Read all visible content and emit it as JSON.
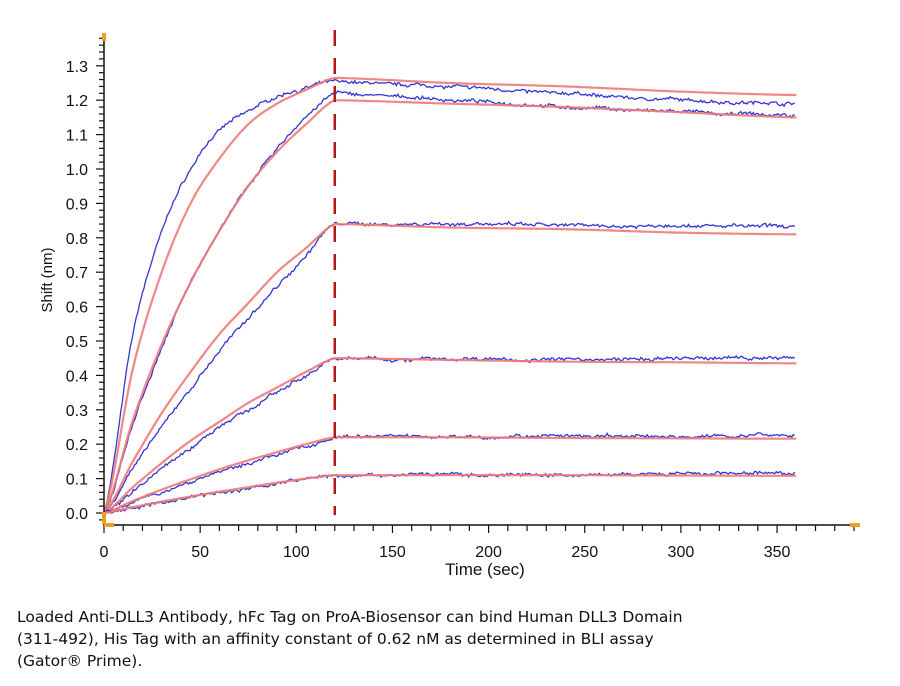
{
  "chart_data": {
    "type": "line",
    "title": "",
    "xlabel": "Time (sec)",
    "ylabel": "Shift (nm)",
    "xlim": [
      0,
      392
    ],
    "ylim": [
      -0.03,
      1.38
    ],
    "xticks": [
      "0",
      "50",
      "100",
      "150",
      "200",
      "250",
      "300",
      "350"
    ],
    "xtick_values": [
      0,
      50,
      100,
      150,
      200,
      250,
      300,
      350
    ],
    "yticks": [
      "0.0",
      "0.1",
      "0.2",
      "0.3",
      "0.4",
      "0.5",
      "0.6",
      "0.7",
      "0.8",
      "0.9",
      "1.0",
      "1.1",
      "1.2",
      "1.3"
    ],
    "ytick_values": [
      0,
      0.1,
      0.2,
      0.3,
      0.4,
      0.5,
      0.6,
      0.7,
      0.8,
      0.9,
      1.0,
      1.1,
      1.2,
      1.3
    ],
    "dissociation_start": 120,
    "x": [
      0,
      15,
      30,
      45,
      60,
      75,
      90,
      105,
      120,
      180,
      240,
      300,
      360
    ],
    "colors": {
      "measured": "#2a2ad0",
      "fit": "#f07a78",
      "marker": "#b01818",
      "axis_end": "#f0a020"
    },
    "series": [
      {
        "name": "measured-1",
        "kind": "measured",
        "values": [
          0,
          0.52,
          0.82,
          1.0,
          1.11,
          1.17,
          1.21,
          1.235,
          1.255,
          1.24,
          1.22,
          1.2,
          1.19
        ]
      },
      {
        "name": "fit-1",
        "kind": "fit",
        "values": [
          0,
          0.42,
          0.7,
          0.9,
          1.03,
          1.13,
          1.19,
          1.23,
          1.265,
          1.25,
          1.24,
          1.225,
          1.215
        ]
      },
      {
        "name": "measured-2",
        "kind": "measured",
        "values": [
          0,
          0.26,
          0.48,
          0.67,
          0.82,
          0.95,
          1.06,
          1.15,
          1.22,
          1.2,
          1.18,
          1.165,
          1.155
        ]
      },
      {
        "name": "fit-2",
        "kind": "fit",
        "values": [
          0,
          0.27,
          0.49,
          0.67,
          0.82,
          0.95,
          1.05,
          1.13,
          1.2,
          1.19,
          1.18,
          1.165,
          1.15
        ]
      },
      {
        "name": "measured-3",
        "kind": "measured",
        "values": [
          0,
          0.13,
          0.25,
          0.36,
          0.47,
          0.57,
          0.66,
          0.75,
          0.84,
          0.84,
          0.835,
          0.835,
          0.835
        ]
      },
      {
        "name": "fit-3",
        "kind": "fit",
        "values": [
          0,
          0.15,
          0.29,
          0.41,
          0.52,
          0.61,
          0.7,
          0.77,
          0.84,
          0.83,
          0.825,
          0.815,
          0.81
        ]
      },
      {
        "name": "measured-4",
        "kind": "measured",
        "values": [
          0,
          0.065,
          0.13,
          0.19,
          0.25,
          0.3,
          0.35,
          0.4,
          0.45,
          0.448,
          0.446,
          0.448,
          0.452
        ]
      },
      {
        "name": "fit-4",
        "kind": "fit",
        "values": [
          0,
          0.075,
          0.145,
          0.21,
          0.265,
          0.32,
          0.365,
          0.41,
          0.45,
          0.445,
          0.44,
          0.438,
          0.435
        ]
      },
      {
        "name": "measured-5",
        "kind": "measured",
        "values": [
          0,
          0.03,
          0.06,
          0.09,
          0.12,
          0.145,
          0.17,
          0.195,
          0.22,
          0.222,
          0.222,
          0.222,
          0.225
        ]
      },
      {
        "name": "fit-5",
        "kind": "fit",
        "values": [
          0,
          0.035,
          0.068,
          0.098,
          0.127,
          0.153,
          0.177,
          0.2,
          0.22,
          0.22,
          0.218,
          0.217,
          0.216
        ]
      },
      {
        "name": "measured-6",
        "kind": "measured",
        "values": [
          0,
          0.015,
          0.03,
          0.045,
          0.06,
          0.073,
          0.086,
          0.098,
          0.11,
          0.112,
          0.111,
          0.112,
          0.115
        ]
      },
      {
        "name": "fit-6",
        "kind": "fit",
        "values": [
          0,
          0.017,
          0.033,
          0.048,
          0.062,
          0.075,
          0.088,
          0.1,
          0.11,
          0.11,
          0.11,
          0.109,
          0.108
        ]
      }
    ]
  },
  "caption": {
    "line1": "Loaded Anti-DLL3 Antibody, hFc Tag on ProA-Biosensor can bind Human DLL3 Domain",
    "line2": "(311-492), His Tag with an affinity constant of 0.62 nM as determined in BLI assay",
    "line3": "(Gator® Prime)."
  }
}
